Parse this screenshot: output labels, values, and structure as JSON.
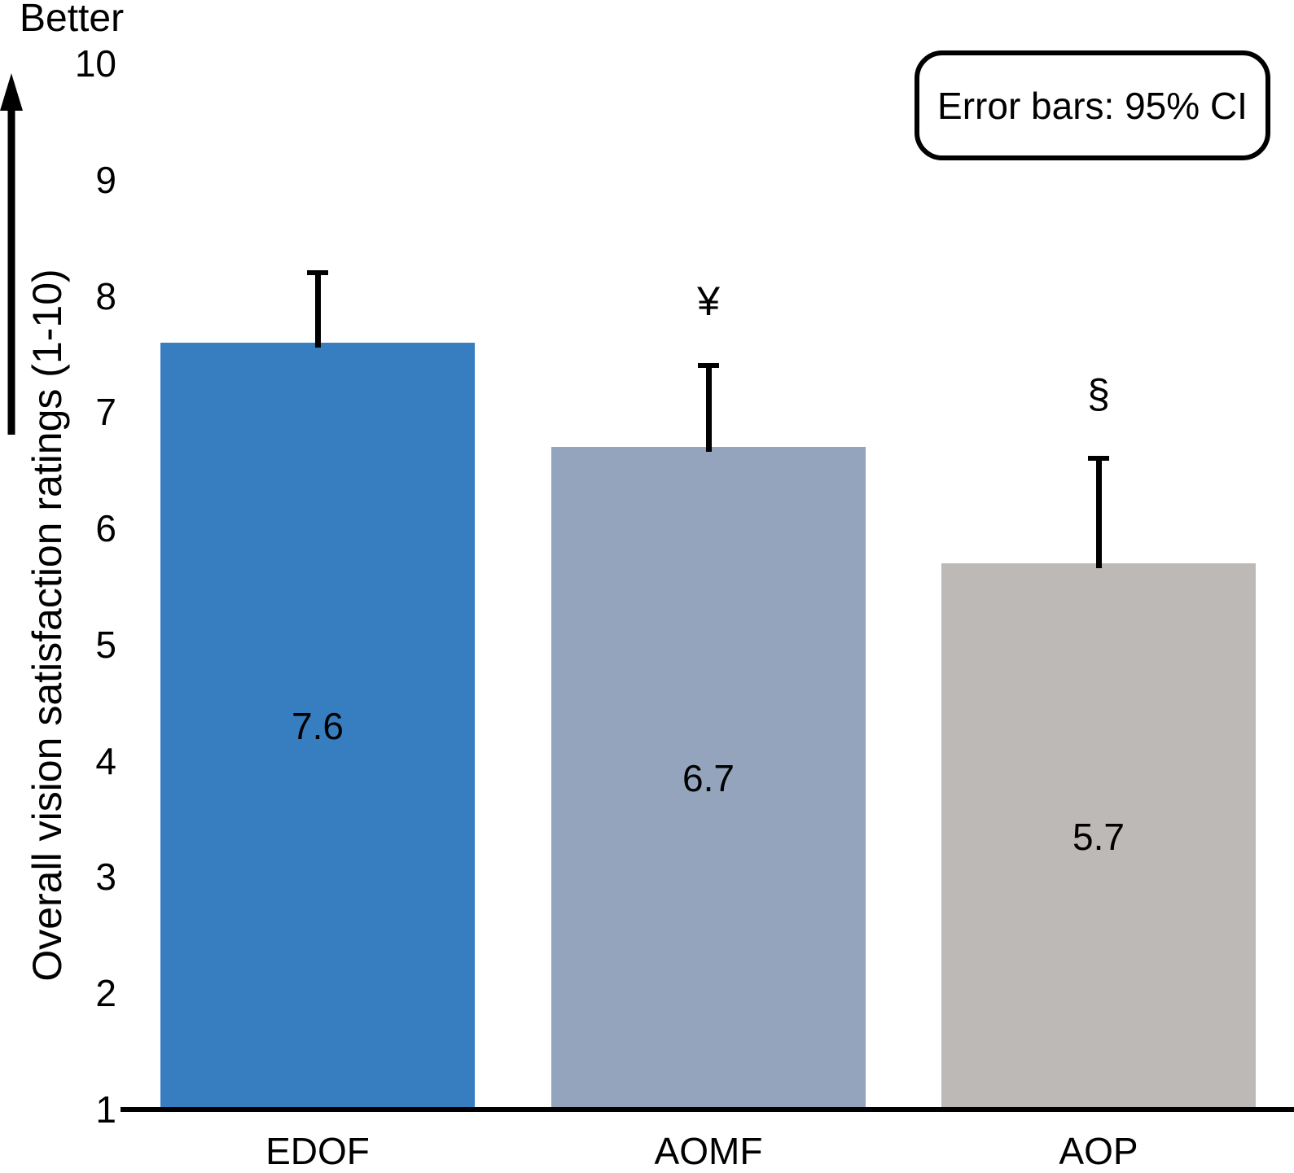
{
  "chart_data": {
    "type": "bar",
    "title": "",
    "better_label": "Better",
    "ylabel": "Overall vision satisfaction ratings (1-10)",
    "legend_text": "Error bars: 95% CI",
    "legend_position": "top-right",
    "categories": [
      "EDOF",
      "AOMF",
      "AOP"
    ],
    "values": [
      7.6,
      6.7,
      5.7
    ],
    "value_labels": [
      "7.6",
      "6.7",
      "5.7"
    ],
    "error_upper": [
      8.2,
      7.4,
      6.6
    ],
    "significance_markers": [
      "",
      "¥",
      "§"
    ],
    "bar_colors": [
      "#377EC1",
      "#93A4BC",
      "#BDB9B6"
    ],
    "axis_color": "#000000",
    "ylim": [
      1,
      10
    ],
    "yticks": [
      1,
      2,
      3,
      4,
      5,
      6,
      7,
      8,
      9,
      10
    ],
    "grid": false
  }
}
